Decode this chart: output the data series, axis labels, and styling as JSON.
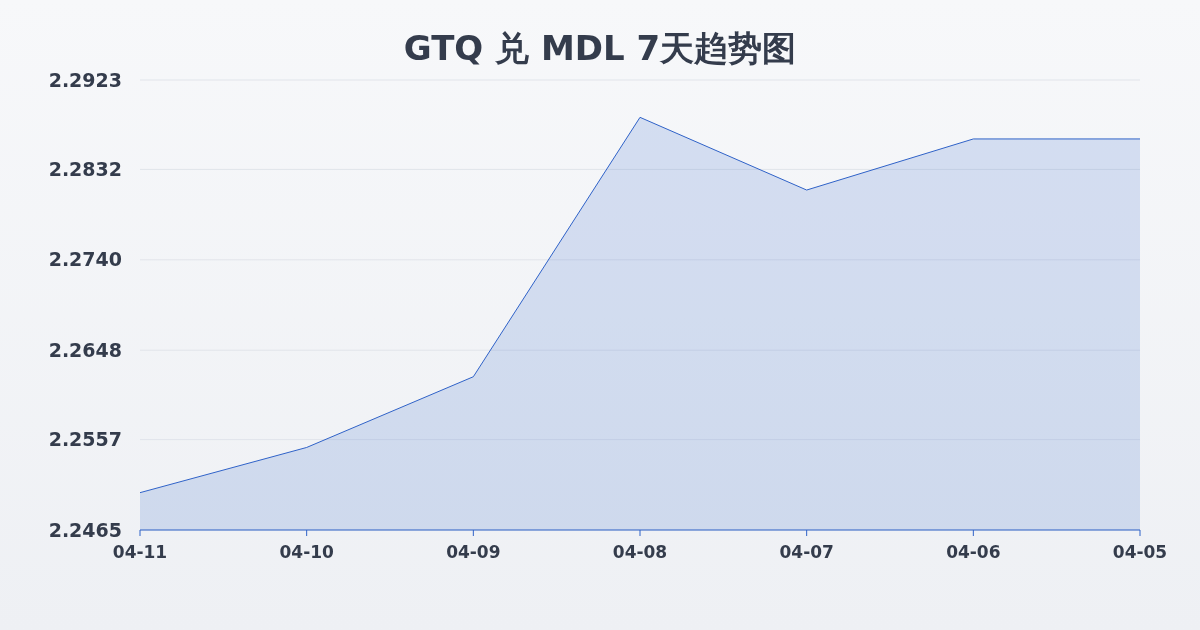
{
  "chart_data": {
    "type": "area",
    "title": "GTQ 兑 MDL 7天趋势图",
    "categories": [
      "04-11",
      "04-10",
      "04-09",
      "04-08",
      "04-07",
      "04-06",
      "04-05"
    ],
    "series": [
      {
        "color": "#2f62c8",
        "values": [
          2.2503,
          2.2549,
          2.2621,
          2.2885,
          2.2811,
          2.2863,
          2.2863
        ]
      }
    ],
    "ylim": [
      2.2465,
      2.2923
    ],
    "yticks": [
      2.2465,
      2.2557,
      2.2648,
      {
        "value": 2.274,
        "label": "2.2740"
      },
      2.2832,
      2.2923
    ],
    "grid": "y"
  }
}
